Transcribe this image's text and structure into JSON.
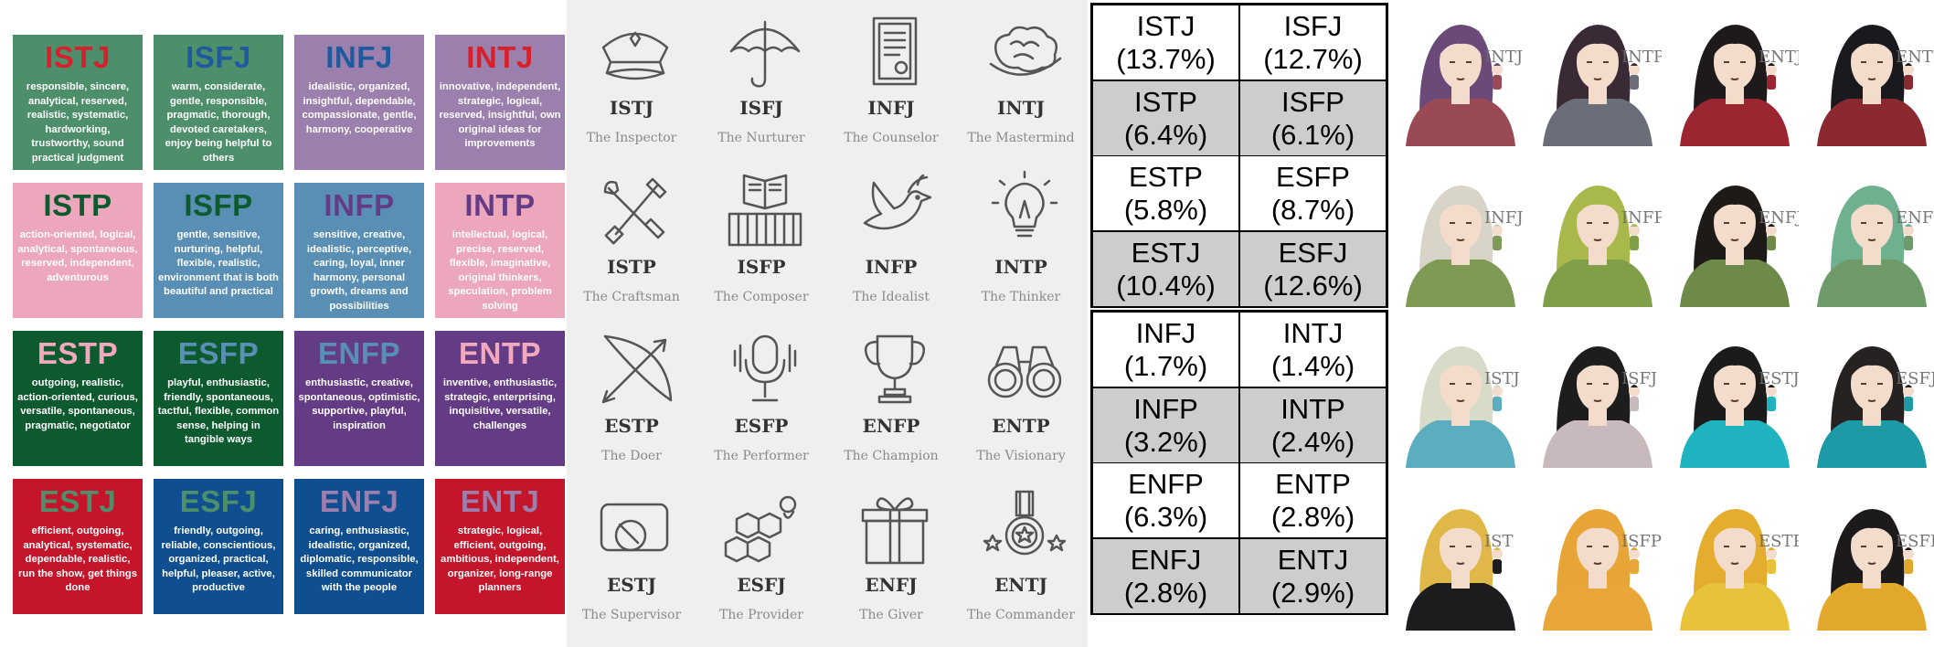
{
  "type_cards": [
    {
      "type": "ISTJ",
      "description": "responsible, sincere, analytical, reserved, realistic, systematic, hardworking, trustworthy, sound practical judgment",
      "bg": "#4e8f6b",
      "type_color": "#d8202c"
    },
    {
      "type": "ISFJ",
      "description": "warm, considerate, gentle, responsible, pragmatic, thorough, devoted caretakers, enjoy being helpful to others",
      "bg": "#4e8f6b",
      "type_color": "#1f5a9e"
    },
    {
      "type": "INFJ",
      "description": "idealistic, organized, insightful, dependable, compassionate, gentle, harmony, cooperative",
      "bg": "#9b7fac",
      "type_color": "#1f5a9e"
    },
    {
      "type": "INTJ",
      "description": "innovative, independent, strategic, logical, reserved, insightful, own original ideas for improvements",
      "bg": "#9b7fac",
      "type_color": "#d8202c"
    },
    {
      "type": "ISTP",
      "description": "action-oriented, logical, analytical, spontaneous, reserved, independent, adventurous",
      "bg": "#eca7bd",
      "type_color": "#0d5a2e"
    },
    {
      "type": "ISFP",
      "description": "gentle, sensitive, nurturing, helpful, flexible, realistic, environment that is both beautiful and practical",
      "bg": "#5a8fb5",
      "type_color": "#0d5a2e"
    },
    {
      "type": "INFP",
      "description": "sensitive, creative, idealistic, perceptive, caring, loyal, inner harmony, personal growth, dreams and possibilities",
      "bg": "#5a8fb5",
      "type_color": "#643c86"
    },
    {
      "type": "INTP",
      "description": "intellectual, logical, precise, reserved, flexible, imaginative, original thinkers, speculation, problem solving",
      "bg": "#eca7bd",
      "type_color": "#643c86"
    },
    {
      "type": "ESTP",
      "description": "outgoing, realistic, action-oriented, curious, versatile, spontaneous, pragmatic, negotiator",
      "bg": "#0d5a2e",
      "type_color": "#f2a9be"
    },
    {
      "type": "ESFP",
      "description": "playful, enthusiastic, friendly, spontaneous, tactful, flexible, common sense, helping in tangible ways",
      "bg": "#0d5a2e",
      "type_color": "#5a8fb5"
    },
    {
      "type": "ENFP",
      "description": "enthusiastic, creative, spontaneous, optimistic, supportive, playful, inspiration",
      "bg": "#643c86",
      "type_color": "#5a8fb5"
    },
    {
      "type": "ENTP",
      "description": "inventive, enthusiastic, strategic, enterprising, inquisitive, versatile, challenges",
      "bg": "#643c86",
      "type_color": "#f2a9be"
    },
    {
      "type": "ESTJ",
      "description": "efficient, outgoing, analytical, systematic, dependable, realistic, run the show, get things done",
      "bg": "#c4152b",
      "type_color": "#4e8f6b"
    },
    {
      "type": "ESFJ",
      "description": "friendly, outgoing, reliable, conscientious, organized, practical, helpful, pleaser, active, productive",
      "bg": "#0f4f8f",
      "type_color": "#4e8f6b"
    },
    {
      "type": "ENFJ",
      "description": "caring, enthusiastic, idealistic, organized, diplomatic, responsible, skilled communicator with the people",
      "bg": "#0f4f8f",
      "type_color": "#9b7fac"
    },
    {
      "type": "ENTJ",
      "description": "strategic, logical, efficient, outgoing, ambitious, independent, organizer, long-range planners",
      "bg": "#c4152b",
      "type_color": "#9b7fac"
    }
  ],
  "archetypes": [
    {
      "type": "ISTJ",
      "name": "The Inspector",
      "icon": "police-cap-icon"
    },
    {
      "type": "ISFJ",
      "name": "The Nurturer",
      "icon": "umbrella-icon"
    },
    {
      "type": "INFJ",
      "name": "The Counselor",
      "icon": "document-icon"
    },
    {
      "type": "INTJ",
      "name": "The Mastermind",
      "icon": "brain-icon"
    },
    {
      "type": "ISTP",
      "name": "The Craftsman",
      "icon": "tools-icon"
    },
    {
      "type": "ISFP",
      "name": "The Composer",
      "icon": "piano-icon"
    },
    {
      "type": "INFP",
      "name": "The Idealist",
      "icon": "dove-icon"
    },
    {
      "type": "INTP",
      "name": "The Thinker",
      "icon": "lightbulb-icon"
    },
    {
      "type": "ESTP",
      "name": "The Doer",
      "icon": "bow-arrow-icon"
    },
    {
      "type": "ESFP",
      "name": "The Performer",
      "icon": "microphone-icon"
    },
    {
      "type": "ENFP",
      "name": "The Champion",
      "icon": "trophy-icon"
    },
    {
      "type": "ENTP",
      "name": "The Visionary",
      "icon": "binoculars-icon"
    },
    {
      "type": "ESTJ",
      "name": "The Supervisor",
      "icon": "whistle-icon"
    },
    {
      "type": "ESFJ",
      "name": "The Provider",
      "icon": "honeycomb-icon"
    },
    {
      "type": "ENFJ",
      "name": "The Giver",
      "icon": "gift-icon"
    },
    {
      "type": "ENTJ",
      "name": "The Commander",
      "icon": "medal-icon"
    }
  ],
  "distribution": [
    {
      "type": "ISTJ",
      "percent": "(13.7%)"
    },
    {
      "type": "ISFJ",
      "percent": "(12.7%)"
    },
    {
      "type": "ISTP",
      "percent": "(6.4%)"
    },
    {
      "type": "ISFP",
      "percent": "(6.1%)"
    },
    {
      "type": "ESTP",
      "percent": "(5.8%)"
    },
    {
      "type": "ESFP",
      "percent": "(8.7%)"
    },
    {
      "type": "ESTJ",
      "percent": "(10.4%)"
    },
    {
      "type": "ESFJ",
      "percent": "(12.6%)"
    },
    {
      "type": "INFJ",
      "percent": "(1.7%)"
    },
    {
      "type": "INTJ",
      "percent": "(1.4%)"
    },
    {
      "type": "INFP",
      "percent": "(3.2%)"
    },
    {
      "type": "INTP",
      "percent": "(2.4%)"
    },
    {
      "type": "ENFP",
      "percent": "(6.3%)"
    },
    {
      "type": "ENTP",
      "percent": "(2.8%)"
    },
    {
      "type": "ENFJ",
      "percent": "(2.8%)"
    },
    {
      "type": "ENTJ",
      "percent": "(2.9%)"
    }
  ],
  "portraits": [
    {
      "label": "INTJ",
      "outfit": "#9a4a55",
      "hair": "#6b4a7a"
    },
    {
      "label": "INTP",
      "outfit": "#6b6e78",
      "hair": "#3a2a35"
    },
    {
      "label": "ENTJ",
      "outfit": "#9b2530",
      "hair": "#1e1a1c"
    },
    {
      "label": "ENTP",
      "outfit": "#8a2a30",
      "hair": "#1a1a1e"
    },
    {
      "label": "INFJ",
      "outfit": "#7e9a55",
      "hair": "#d8d4c8"
    },
    {
      "label": "INFP",
      "outfit": "#7fa048",
      "hair": "#a8b84a"
    },
    {
      "label": "ENFJ",
      "outfit": "#6d8a48",
      "hair": "#1e1a18"
    },
    {
      "label": "ENFP",
      "outfit": "#6f9a6a",
      "hair": "#6fb08f"
    },
    {
      "label": "ISTJ",
      "outfit": "#5aaec0",
      "hair": "#d9dbc9"
    },
    {
      "label": "ISFJ",
      "outfit": "#c8b9bd",
      "hair": "#1e1d1e"
    },
    {
      "label": "ESTJ",
      "outfit": "#1fb2bf",
      "hair": "#1b1b1c"
    },
    {
      "label": "ESFJ",
      "outfit": "#1e9aa6",
      "hair": "#262222"
    },
    {
      "label": "IST",
      "outfit": "#1c1b1d",
      "hair": "#e0b84a"
    },
    {
      "label": "ISFP",
      "outfit": "#e9a73a",
      "hair": "#e7a437"
    },
    {
      "label": "ESTP",
      "outfit": "#e8c23a",
      "hair": "#e5ad2e"
    },
    {
      "label": "ESFP",
      "outfit": "#e2a82c",
      "hair": "#1c1a1a"
    }
  ],
  "colors": {
    "stat_white": "#ffffff",
    "stat_gray": "#cdcdcd",
    "icon_stroke": "#555555",
    "skin": "#f3dccb"
  }
}
